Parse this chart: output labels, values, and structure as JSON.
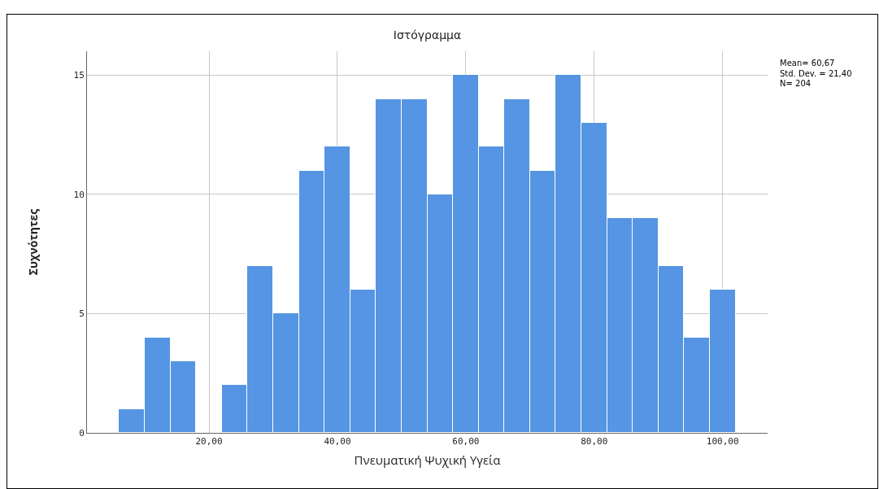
{
  "chart_data": {
    "type": "histogram",
    "title": "Ιστόγραμμα",
    "xlabel": "Πνευματική Ψυχική Υγεία",
    "ylabel": "Συχνότητες",
    "bins": [
      6,
      10,
      14,
      18,
      22,
      26,
      30,
      34,
      38,
      42,
      46,
      50,
      54,
      58,
      62,
      66,
      70,
      74,
      78,
      82,
      86,
      90,
      94,
      98,
      102
    ],
    "values": [
      1,
      4,
      3,
      0,
      2,
      7,
      5,
      11,
      12,
      6,
      14,
      14,
      10,
      15,
      12,
      14,
      11,
      15,
      13,
      9,
      9,
      7,
      4,
      6
    ],
    "color": "#5595e3",
    "xlim": [
      1,
      107
    ],
    "xticks": [
      {
        "value": 20,
        "label": "20,00"
      },
      {
        "value": 40,
        "label": "40,00"
      },
      {
        "value": 60,
        "label": "60,00"
      },
      {
        "value": 80,
        "label": "80,00"
      },
      {
        "value": 100,
        "label": "100,00"
      }
    ],
    "ylim": [
      0,
      16
    ],
    "yticks": [
      0,
      5,
      10,
      15
    ],
    "grid": true,
    "annotations": [
      "Mean= 60,67",
      "Std. Dev. = 21,40",
      "N= 204"
    ]
  }
}
